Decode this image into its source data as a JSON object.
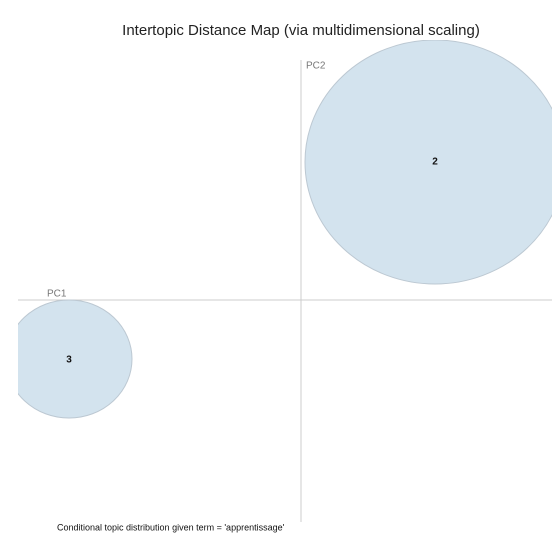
{
  "title": "Intertopic Distance Map (via multidimensional scaling)",
  "axes": {
    "x_label": "PC1",
    "y_label": "PC2"
  },
  "topics": [
    {
      "label": "2"
    },
    {
      "label": "3"
    }
  ],
  "caption": "Conditional topic distribution given term = 'apprentissage'"
}
